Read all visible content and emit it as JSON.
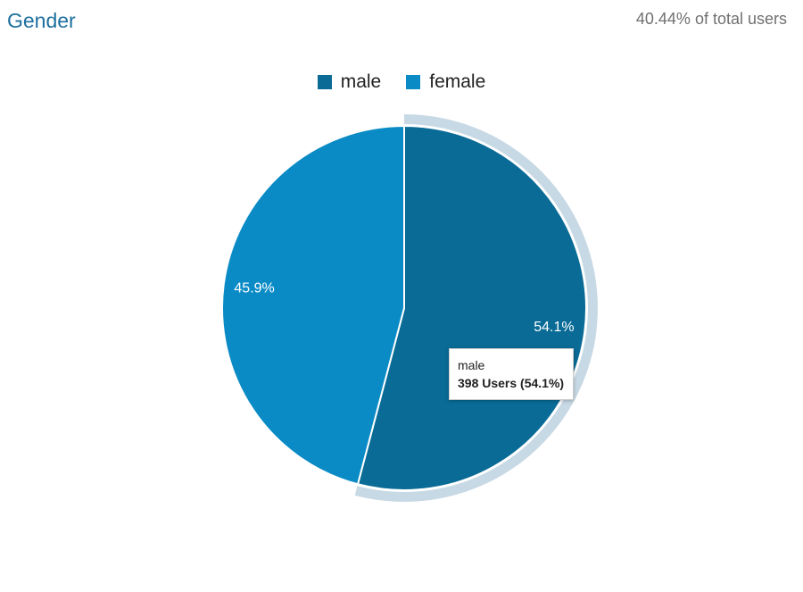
{
  "card": {
    "title": "Gender",
    "subtitle": "40.44% of total users"
  },
  "chart_data": {
    "type": "pie",
    "title": "Gender",
    "legend_position": "top",
    "categories": [
      "male",
      "female"
    ],
    "values": [
      54.1,
      45.9
    ],
    "slices": [
      {
        "name": "male",
        "percent": 54.1,
        "label": "54.1%",
        "color": "#096b96",
        "highlighted": true
      },
      {
        "name": "female",
        "percent": 45.9,
        "label": "45.9%",
        "color": "#0a8bc6",
        "highlighted": false
      }
    ],
    "highlight_color": "#c7d9e5"
  },
  "tooltip": {
    "label": "male",
    "value": "398 Users (54.1%)"
  }
}
